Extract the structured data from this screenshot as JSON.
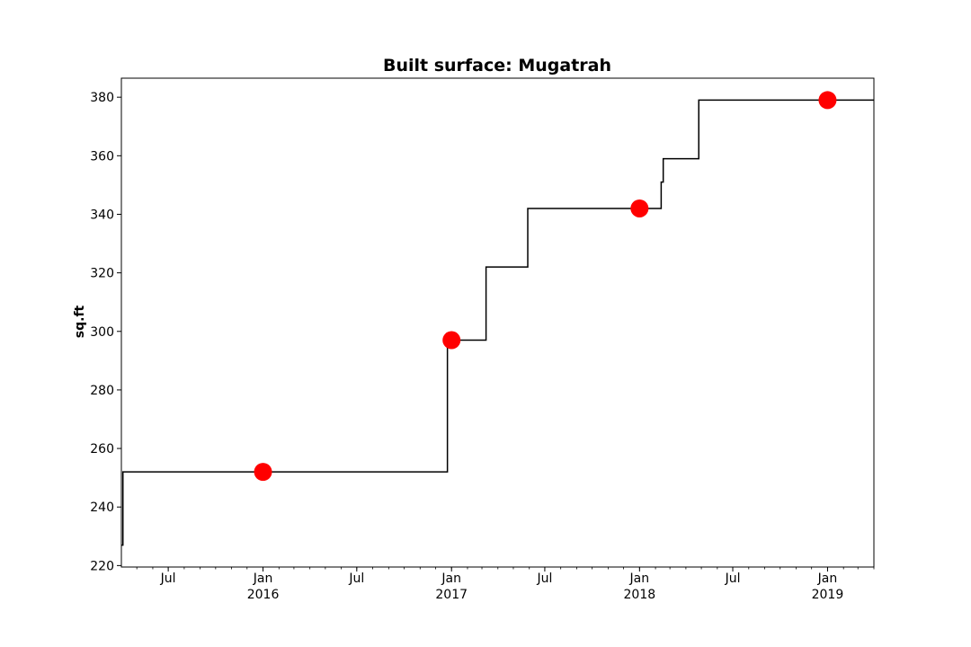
{
  "chart_data": {
    "type": "line",
    "title": "Built surface: Mugatrah",
    "xlabel": "",
    "ylabel": "sq.ft",
    "xlim": [
      "2015-04-01",
      "2019-04-01"
    ],
    "ylim": [
      219.5,
      386.5
    ],
    "grid": false,
    "legend": "none",
    "y_ticks": [
      220,
      240,
      260,
      280,
      300,
      320,
      340,
      360,
      380
    ],
    "x_ticks": [
      {
        "date": "2015-07-01",
        "label": "Jul",
        "sublabel": ""
      },
      {
        "date": "2016-01-01",
        "label": "Jan",
        "sublabel": "2016"
      },
      {
        "date": "2016-07-01",
        "label": "Jul",
        "sublabel": ""
      },
      {
        "date": "2017-01-01",
        "label": "Jan",
        "sublabel": "2017"
      },
      {
        "date": "2017-07-01",
        "label": "Jul",
        "sublabel": ""
      },
      {
        "date": "2018-01-01",
        "label": "Jan",
        "sublabel": "2018"
      },
      {
        "date": "2018-07-01",
        "label": "Jul",
        "sublabel": ""
      },
      {
        "date": "2019-01-01",
        "label": "Jan",
        "sublabel": "2019"
      }
    ],
    "series": [
      {
        "style": "step",
        "color": "#000000",
        "points": [
          {
            "x": "2015-04-01",
            "y": 227
          },
          {
            "x": "2015-04-04",
            "y": 252
          },
          {
            "x": "2016-12-24",
            "y": 297
          },
          {
            "x": "2017-03-09",
            "y": 322
          },
          {
            "x": "2017-05-29",
            "y": 342
          },
          {
            "x": "2018-02-12",
            "y": 351
          },
          {
            "x": "2018-02-16",
            "y": 359
          },
          {
            "x": "2018-04-26",
            "y": 379
          },
          {
            "x": "2019-04-01",
            "y": 379
          }
        ]
      },
      {
        "style": "markers",
        "color": "#ff0000",
        "points": [
          {
            "x": "2016-01-01",
            "y": 252
          },
          {
            "x": "2017-01-01",
            "y": 297
          },
          {
            "x": "2018-01-01",
            "y": 342
          },
          {
            "x": "2019-01-01",
            "y": 379
          }
        ]
      }
    ]
  }
}
